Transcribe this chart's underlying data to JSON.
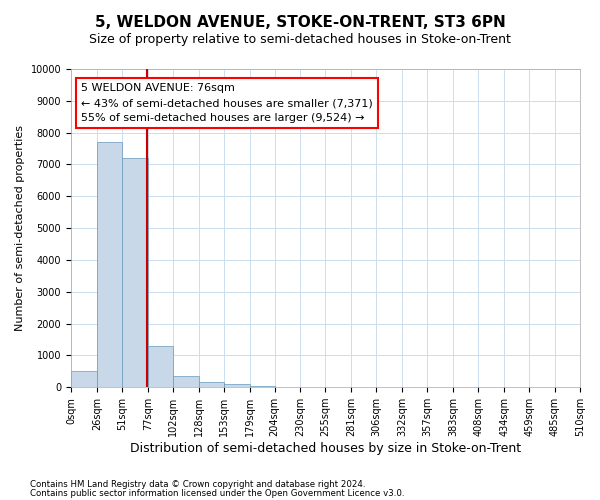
{
  "title": "5, WELDON AVENUE, STOKE-ON-TRENT, ST3 6PN",
  "subtitle": "Size of property relative to semi-detached houses in Stoke-on-Trent",
  "xlabel": "Distribution of semi-detached houses by size in Stoke-on-Trent",
  "ylabel": "Number of semi-detached properties",
  "footnote1": "Contains HM Land Registry data © Crown copyright and database right 2024.",
  "footnote2": "Contains public sector information licensed under the Open Government Licence v3.0.",
  "bar_values": [
    500,
    7700,
    7200,
    1300,
    350,
    150,
    100,
    50,
    0,
    0,
    0,
    0,
    0,
    0,
    0,
    0,
    0,
    0,
    0,
    0
  ],
  "bin_edges": [
    0,
    26,
    51,
    77,
    102,
    128,
    153,
    179,
    204,
    230,
    255,
    281,
    306,
    332,
    357,
    383,
    408,
    434,
    459,
    485,
    510
  ],
  "bin_labels": [
    "0sqm",
    "26sqm",
    "51sqm",
    "77sqm",
    "102sqm",
    "128sqm",
    "153sqm",
    "179sqm",
    "204sqm",
    "230sqm",
    "255sqm",
    "281sqm",
    "306sqm",
    "332sqm",
    "357sqm",
    "383sqm",
    "408sqm",
    "434sqm",
    "459sqm",
    "485sqm",
    "510sqm"
  ],
  "bar_color": "#c8d8e8",
  "bar_edge_color": "#6699bb",
  "grid_color": "#ccddee",
  "annotation_text": "5 WELDON AVENUE: 76sqm\n← 43% of semi-detached houses are smaller (7,371)\n55% of semi-detached houses are larger (9,524) →",
  "vline_x": 76,
  "vline_color": "#cc0000",
  "ylim": [
    0,
    10000
  ],
  "yticks": [
    0,
    1000,
    2000,
    3000,
    4000,
    5000,
    6000,
    7000,
    8000,
    9000,
    10000
  ],
  "property_size": 76,
  "background_color": "#ffffff",
  "title_fontsize": 11,
  "subtitle_fontsize": 9,
  "ylabel_fontsize": 8,
  "xlabel_fontsize": 9,
  "annotation_fontsize": 8,
  "tick_fontsize": 7
}
